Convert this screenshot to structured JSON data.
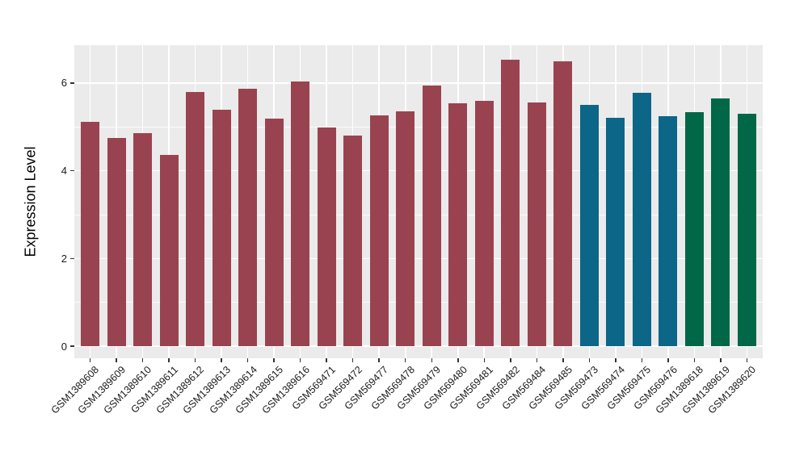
{
  "chart_data": {
    "type": "bar",
    "title": "",
    "xlabel": "",
    "ylabel": "Expression Level",
    "ylim": [
      0,
      6.9
    ],
    "yticks": [
      0,
      2,
      4,
      6
    ],
    "ytick_labels": [
      "0",
      "2",
      "4",
      "6"
    ],
    "grid": "white major and minor horizontal gridlines plus vertical lines at bar centers on gray panel",
    "legend": "none",
    "categories": [
      "GSM1389608",
      "GSM1389609",
      "GSM1389610",
      "GSM1389611",
      "GSM1389612",
      "GSM1389613",
      "GSM1389614",
      "GSM1389615",
      "GSM1389616",
      "GSM569471",
      "GSM569472",
      "GSM569477",
      "GSM569478",
      "GSM569479",
      "GSM569480",
      "GSM569481",
      "GSM569482",
      "GSM569484",
      "GSM569485",
      "GSM569473",
      "GSM569474",
      "GSM569475",
      "GSM569476",
      "GSM1389618",
      "GSM1389619",
      "GSM1389620"
    ],
    "values": [
      5.11,
      4.74,
      4.86,
      4.36,
      5.8,
      5.39,
      5.87,
      5.19,
      6.03,
      4.98,
      4.81,
      5.27,
      5.35,
      5.94,
      5.53,
      5.6,
      6.53,
      5.56,
      6.5,
      5.5,
      5.2,
      5.78,
      5.24,
      5.33,
      5.65,
      5.3
    ],
    "bar_color_keys": [
      "maroon",
      "maroon",
      "maroon",
      "maroon",
      "maroon",
      "maroon",
      "maroon",
      "maroon",
      "maroon",
      "maroon",
      "maroon",
      "maroon",
      "maroon",
      "maroon",
      "maroon",
      "maroon",
      "maroon",
      "maroon",
      "maroon",
      "teal",
      "teal",
      "teal",
      "teal",
      "green",
      "green",
      "green"
    ],
    "palette": {
      "maroon": "#9A4350",
      "teal": "#0B6687",
      "green": "#016847"
    },
    "panel_background": "#EBEBEB",
    "figure_background": "#FFFFFF",
    "gridline_color": "#FFFFFF",
    "axis_text_color": "#1A1A1A",
    "tick_mark_color": "#333333"
  }
}
